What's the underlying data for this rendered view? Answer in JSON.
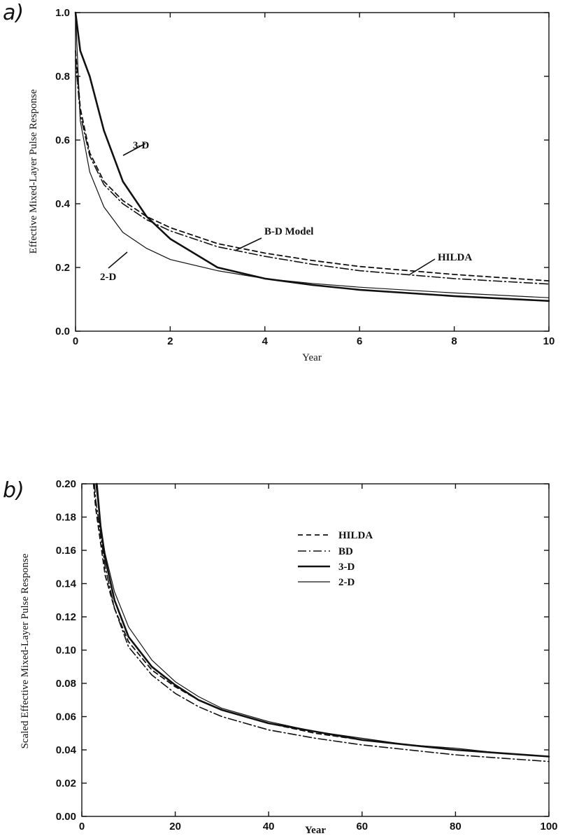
{
  "chart_data": [
    {
      "type": "line",
      "panel_label": "a)",
      "xlabel": "Year",
      "ylabel": "Effective Mixed-Layer Pulse Response",
      "xlim": [
        0,
        10
      ],
      "ylim": [
        0,
        1.0
      ],
      "xticks": [
        "0",
        "2",
        "4",
        "6",
        "8",
        "10"
      ],
      "yticks": [
        "0.0",
        "0.2",
        "0.4",
        "0.6",
        "0.8",
        "1.0"
      ],
      "annotations": [
        "3-D",
        "2-D",
        "B-D Model",
        "HILDA"
      ],
      "series": [
        {
          "name": "3-D",
          "style": "solid-thick",
          "x": [
            0,
            0.1,
            0.3,
            0.6,
            1.0,
            1.5,
            2.0,
            3.0,
            4.0,
            5.0,
            6.0,
            8.0,
            10.0
          ],
          "y": [
            1.0,
            0.88,
            0.8,
            0.63,
            0.47,
            0.36,
            0.29,
            0.2,
            0.165,
            0.145,
            0.13,
            0.11,
            0.095
          ]
        },
        {
          "name": "2-D",
          "style": "solid-thin",
          "x": [
            0,
            0.1,
            0.3,
            0.6,
            1.0,
            1.5,
            2.0,
            3.0,
            4.0,
            5.0,
            6.0,
            8.0,
            10.0
          ],
          "y": [
            1.0,
            0.66,
            0.5,
            0.39,
            0.31,
            0.26,
            0.225,
            0.19,
            0.165,
            0.15,
            0.138,
            0.12,
            0.105
          ]
        },
        {
          "name": "B-D Model",
          "style": "dash-dot",
          "x": [
            0,
            0.1,
            0.3,
            0.6,
            1.0,
            1.5,
            2.0,
            3.0,
            4.0,
            5.0,
            6.0,
            8.0,
            10.0
          ],
          "y": [
            0.85,
            0.68,
            0.55,
            0.46,
            0.4,
            0.35,
            0.315,
            0.265,
            0.235,
            0.21,
            0.19,
            0.165,
            0.148
          ]
        },
        {
          "name": "HILDA",
          "style": "dashed",
          "x": [
            0,
            0.1,
            0.3,
            0.6,
            1.0,
            1.5,
            2.0,
            3.0,
            4.0,
            5.0,
            6.0,
            8.0,
            10.0
          ],
          "y": [
            0.88,
            0.7,
            0.56,
            0.47,
            0.41,
            0.36,
            0.325,
            0.275,
            0.245,
            0.222,
            0.203,
            0.178,
            0.158
          ]
        }
      ]
    },
    {
      "type": "line",
      "panel_label": "b)",
      "xlabel": "Year",
      "ylabel": "Scaled Effective Mixed-Layer Pulse Response",
      "xlim": [
        0,
        100
      ],
      "ylim": [
        0,
        0.2
      ],
      "xticks": [
        "0",
        "20",
        "40",
        "60",
        "80",
        "100"
      ],
      "yticks": [
        "0.00",
        "0.02",
        "0.04",
        "0.06",
        "0.08",
        "0.10",
        "0.12",
        "0.14",
        "0.16",
        "0.18",
        "0.20"
      ],
      "legend_position": "upper-right",
      "series": [
        {
          "name": "HILDA",
          "style": "dashed",
          "x": [
            2.5,
            3,
            5,
            7,
            10,
            15,
            20,
            25,
            30,
            40,
            50,
            60,
            70,
            80,
            90,
            100
          ],
          "y": [
            0.2,
            0.185,
            0.145,
            0.125,
            0.105,
            0.088,
            0.078,
            0.07,
            0.064,
            0.056,
            0.05,
            0.046,
            0.043,
            0.04,
            0.038,
            0.036
          ]
        },
        {
          "name": "BD",
          "style": "dash-dot",
          "x": [
            2.7,
            3,
            5,
            7,
            10,
            15,
            20,
            25,
            30,
            40,
            50,
            60,
            70,
            80,
            90,
            100
          ],
          "y": [
            0.2,
            0.19,
            0.15,
            0.125,
            0.102,
            0.085,
            0.074,
            0.066,
            0.06,
            0.052,
            0.047,
            0.043,
            0.04,
            0.037,
            0.035,
            0.033
          ]
        },
        {
          "name": "3-D",
          "style": "solid-thick",
          "x": [
            3.2,
            4,
            5,
            7,
            10,
            15,
            20,
            25,
            30,
            40,
            50,
            60,
            70,
            80,
            90,
            100
          ],
          "y": [
            0.2,
            0.175,
            0.155,
            0.13,
            0.108,
            0.09,
            0.079,
            0.07,
            0.064,
            0.056,
            0.051,
            0.046,
            0.043,
            0.04,
            0.038,
            0.036
          ]
        },
        {
          "name": "2-D",
          "style": "solid-thin",
          "x": [
            3,
            4,
            5,
            7,
            10,
            15,
            20,
            25,
            30,
            40,
            50,
            60,
            70,
            80,
            90,
            100
          ],
          "y": [
            0.2,
            0.175,
            0.158,
            0.135,
            0.114,
            0.094,
            0.081,
            0.072,
            0.065,
            0.057,
            0.051,
            0.047,
            0.043,
            0.041,
            0.038,
            0.036
          ]
        }
      ]
    }
  ]
}
